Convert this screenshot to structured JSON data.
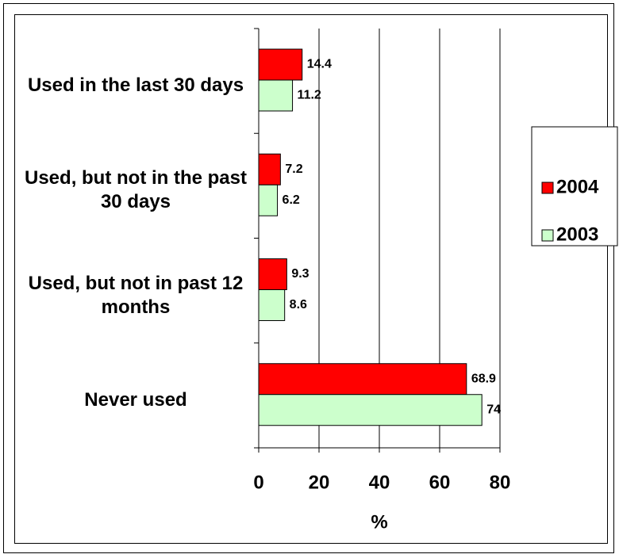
{
  "chart_data": {
    "type": "bar",
    "orientation": "horizontal",
    "categories": [
      "Used in the last 30 days",
      "Used, but not in the past 30 days",
      "Used, but not in past 12 months",
      "Never used"
    ],
    "series": [
      {
        "name": "2004",
        "color": "#ff0000",
        "values": [
          14.4,
          7.2,
          9.3,
          68.9
        ]
      },
      {
        "name": "2003",
        "color": "#ccffcc",
        "values": [
          11.2,
          6.2,
          8.6,
          74
        ]
      }
    ],
    "xlabel": "%",
    "xlim": [
      0,
      80
    ],
    "xticks": [
      0,
      20,
      40,
      60,
      80
    ],
    "grid": true,
    "legend": "right"
  }
}
